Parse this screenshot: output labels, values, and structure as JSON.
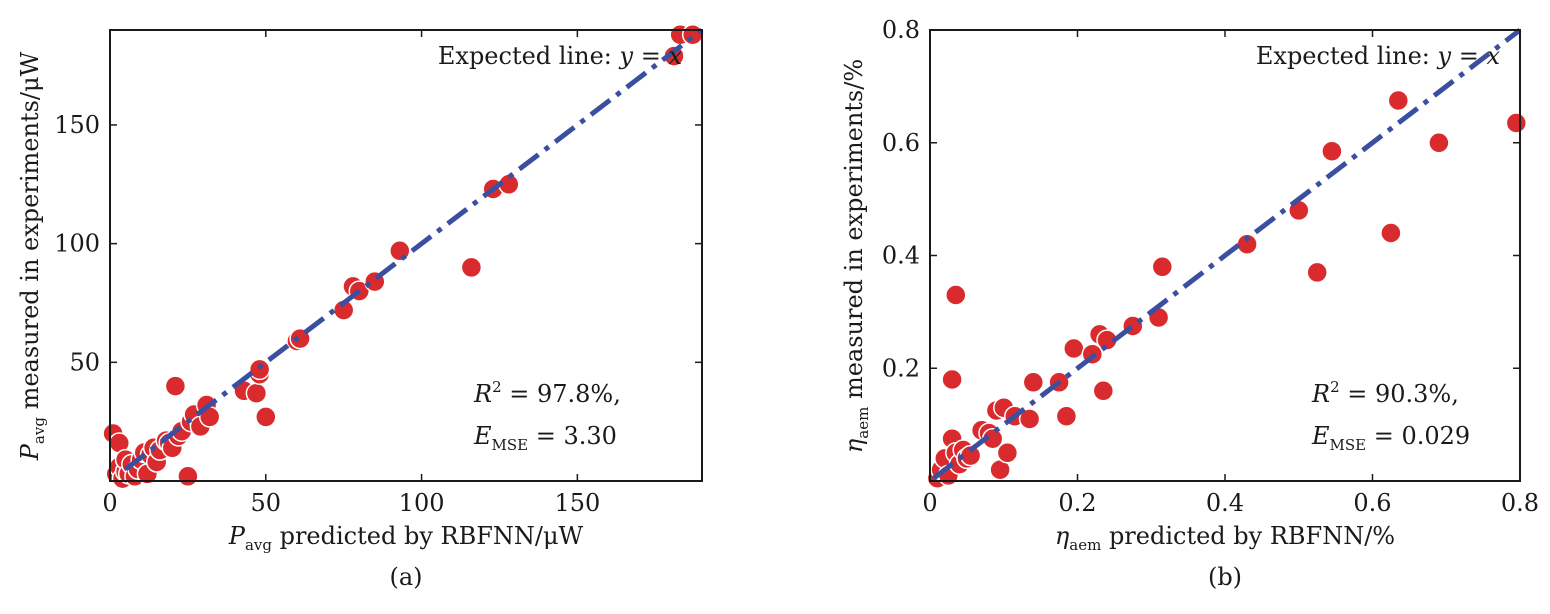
{
  "chart_data": [
    {
      "type": "scatter",
      "panel": "(a)",
      "xlabel_main": "P",
      "xlabel_sub": "avg",
      "xlabel_rest": " predicted by RBFNN/μW",
      "ylabel_main": "P",
      "ylabel_sub": "avg",
      "ylabel_rest": " measured in experiments/μW",
      "xlim": [
        0,
        190
      ],
      "ylim": [
        0,
        190
      ],
      "xticks": [
        0,
        50,
        100,
        150
      ],
      "yticks": [
        50,
        100,
        150
      ],
      "xtick_labels": [
        "0",
        "50",
        "100",
        "150"
      ],
      "ytick_labels": [
        "50",
        "100",
        "150"
      ],
      "line_label_prefix": "Expected line: ",
      "line_label_eq": "y = x",
      "annot_r2_prefix": "R",
      "annot_r2_sup": "2",
      "annot_r2_rest": " = 97.8%,",
      "annot_mse_prefix": "E",
      "annot_mse_sub": "MSE",
      "annot_mse_rest": " = 3.30",
      "fit_line": {
        "x": [
          5,
          190
        ],
        "y": [
          5,
          190
        ]
      },
      "x": [
        1,
        2,
        3,
        3,
        4,
        5,
        5,
        6,
        7,
        8,
        9,
        10,
        11,
        12,
        13,
        14,
        15,
        16,
        18,
        19,
        20,
        21,
        22,
        23,
        25,
        26,
        27,
        29,
        31,
        32,
        43,
        47,
        48,
        48,
        50,
        60,
        61,
        75,
        78,
        80,
        85,
        93,
        116,
        123,
        128,
        181,
        183,
        187
      ],
      "y": [
        20,
        3,
        16,
        6,
        1,
        4,
        9,
        3,
        7,
        2,
        5,
        9,
        12,
        3,
        11,
        14,
        8,
        13,
        17,
        16,
        14,
        40,
        19,
        21,
        2,
        25,
        28,
        23,
        32,
        27,
        38,
        37,
        45,
        47,
        27,
        59,
        60,
        72,
        82,
        80,
        84,
        97,
        90,
        123,
        125,
        179,
        188,
        188
      ]
    },
    {
      "type": "scatter",
      "panel": "(b)",
      "xlabel_main": "η",
      "xlabel_sub": "aem",
      "xlabel_rest": " predicted by RBFNN/%",
      "ylabel_main": "η",
      "ylabel_sub": "aem",
      "ylabel_rest": " measured in experiments/%",
      "xlim": [
        0,
        0.8
      ],
      "ylim": [
        0,
        0.8
      ],
      "xticks": [
        0,
        0.2,
        0.4,
        0.6,
        0.8
      ],
      "yticks": [
        0.2,
        0.4,
        0.6,
        0.8
      ],
      "xtick_labels": [
        "0",
        "0.2",
        "0.4",
        "0.6",
        "0.8"
      ],
      "ytick_labels": [
        "0.2",
        "0.4",
        "0.6",
        "0.8"
      ],
      "line_label_prefix": "Expected line: ",
      "line_label_eq": "y = x",
      "annot_r2_prefix": "R",
      "annot_r2_sup": "2",
      "annot_r2_rest": " = 90.3%,",
      "annot_mse_prefix": "E",
      "annot_mse_sub": "MSE",
      "annot_mse_rest": " = 0.029",
      "fit_line": {
        "x": [
          0.005,
          0.8
        ],
        "y": [
          0.005,
          0.8
        ]
      },
      "x": [
        0.01,
        0.015,
        0.02,
        0.025,
        0.03,
        0.03,
        0.035,
        0.035,
        0.04,
        0.045,
        0.05,
        0.055,
        0.07,
        0.08,
        0.085,
        0.09,
        0.095,
        0.1,
        0.105,
        0.115,
        0.135,
        0.14,
        0.175,
        0.185,
        0.195,
        0.22,
        0.23,
        0.235,
        0.24,
        0.275,
        0.31,
        0.315,
        0.43,
        0.5,
        0.525,
        0.545,
        0.625,
        0.635,
        0.69,
        0.795
      ],
      "y": [
        0.005,
        0.02,
        0.04,
        0.01,
        0.18,
        0.075,
        0.05,
        0.33,
        0.03,
        0.055,
        0.04,
        0.045,
        0.09,
        0.085,
        0.075,
        0.125,
        0.02,
        0.13,
        0.05,
        0.115,
        0.11,
        0.175,
        0.175,
        0.115,
        0.235,
        0.225,
        0.26,
        0.16,
        0.25,
        0.275,
        0.29,
        0.38,
        0.42,
        0.48,
        0.37,
        0.585,
        0.44,
        0.675,
        0.6,
        0.635
      ]
    }
  ]
}
